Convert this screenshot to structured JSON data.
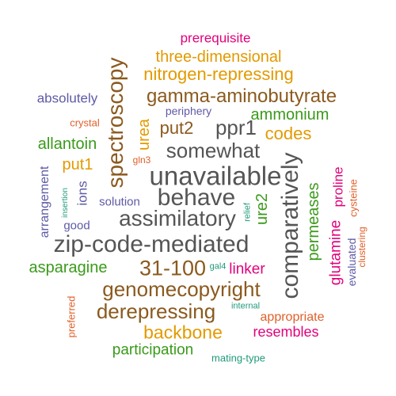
{
  "words": [
    {
      "text": "prerequisite",
      "color": "#e2007a"
    },
    {
      "text": "three-dimensional",
      "color": "#e29a00"
    },
    {
      "text": "nitrogen-repressing",
      "color": "#e29a00"
    },
    {
      "text": "spectroscopy",
      "color": "#8b5a1e"
    },
    {
      "text": "gamma-aminobutyrate",
      "color": "#8b5a1e"
    },
    {
      "text": "absolutely",
      "color": "#5e5aa6"
    },
    {
      "text": "periphery",
      "color": "#5e5aa6"
    },
    {
      "text": "ammonium",
      "color": "#3a9a1a"
    },
    {
      "text": "crystal",
      "color": "#e0602a"
    },
    {
      "text": "urea",
      "color": "#e29a00"
    },
    {
      "text": "put2",
      "color": "#8b5a1e"
    },
    {
      "text": "ppr1",
      "color": "#555555"
    },
    {
      "text": "codes",
      "color": "#e29a00"
    },
    {
      "text": "allantoin",
      "color": "#3a9a1a"
    },
    {
      "text": "gln3",
      "color": "#e0602a"
    },
    {
      "text": "somewhat",
      "color": "#555555"
    },
    {
      "text": "put1",
      "color": "#e29a00"
    },
    {
      "text": "unavailable",
      "color": "#555555"
    },
    {
      "text": "comparatively",
      "color": "#555555"
    },
    {
      "text": "arrangement",
      "color": "#5e5aa6"
    },
    {
      "text": "insertion",
      "color": "#1f9a7a"
    },
    {
      "text": "ions",
      "color": "#5e5aa6"
    },
    {
      "text": "behave",
      "color": "#555555"
    },
    {
      "text": "solution",
      "color": "#5e5aa6"
    },
    {
      "text": "relief",
      "color": "#1f9a7a"
    },
    {
      "text": "ure2",
      "color": "#3a9a1a"
    },
    {
      "text": "permeases",
      "color": "#3a9a1a"
    },
    {
      "text": "proline",
      "color": "#e2007a"
    },
    {
      "text": "cysteine",
      "color": "#e0602a"
    },
    {
      "text": "good",
      "color": "#5e5aa6"
    },
    {
      "text": "assimilatory",
      "color": "#555555"
    },
    {
      "text": "glutamine",
      "color": "#e2007a"
    },
    {
      "text": "zip-code-mediated",
      "color": "#555555"
    },
    {
      "text": "evaluated",
      "color": "#5e5aa6"
    },
    {
      "text": "clustering",
      "color": "#e0602a"
    },
    {
      "text": "asparagine",
      "color": "#3a9a1a"
    },
    {
      "text": "31-100",
      "color": "#8b5a1e"
    },
    {
      "text": "gal4",
      "color": "#1f9a7a"
    },
    {
      "text": "linker",
      "color": "#e2007a"
    },
    {
      "text": "genomecopyright",
      "color": "#8b5a1e"
    },
    {
      "text": "preferred",
      "color": "#e0602a"
    },
    {
      "text": "derepressing",
      "color": "#8b5a1e"
    },
    {
      "text": "internal",
      "color": "#1f9a7a"
    },
    {
      "text": "appropriate",
      "color": "#e0602a"
    },
    {
      "text": "backbone",
      "color": "#e29a00"
    },
    {
      "text": "resembles",
      "color": "#e2007a"
    },
    {
      "text": "participation",
      "color": "#3a9a1a"
    },
    {
      "text": "mating-type",
      "color": "#1f9a7a"
    }
  ]
}
